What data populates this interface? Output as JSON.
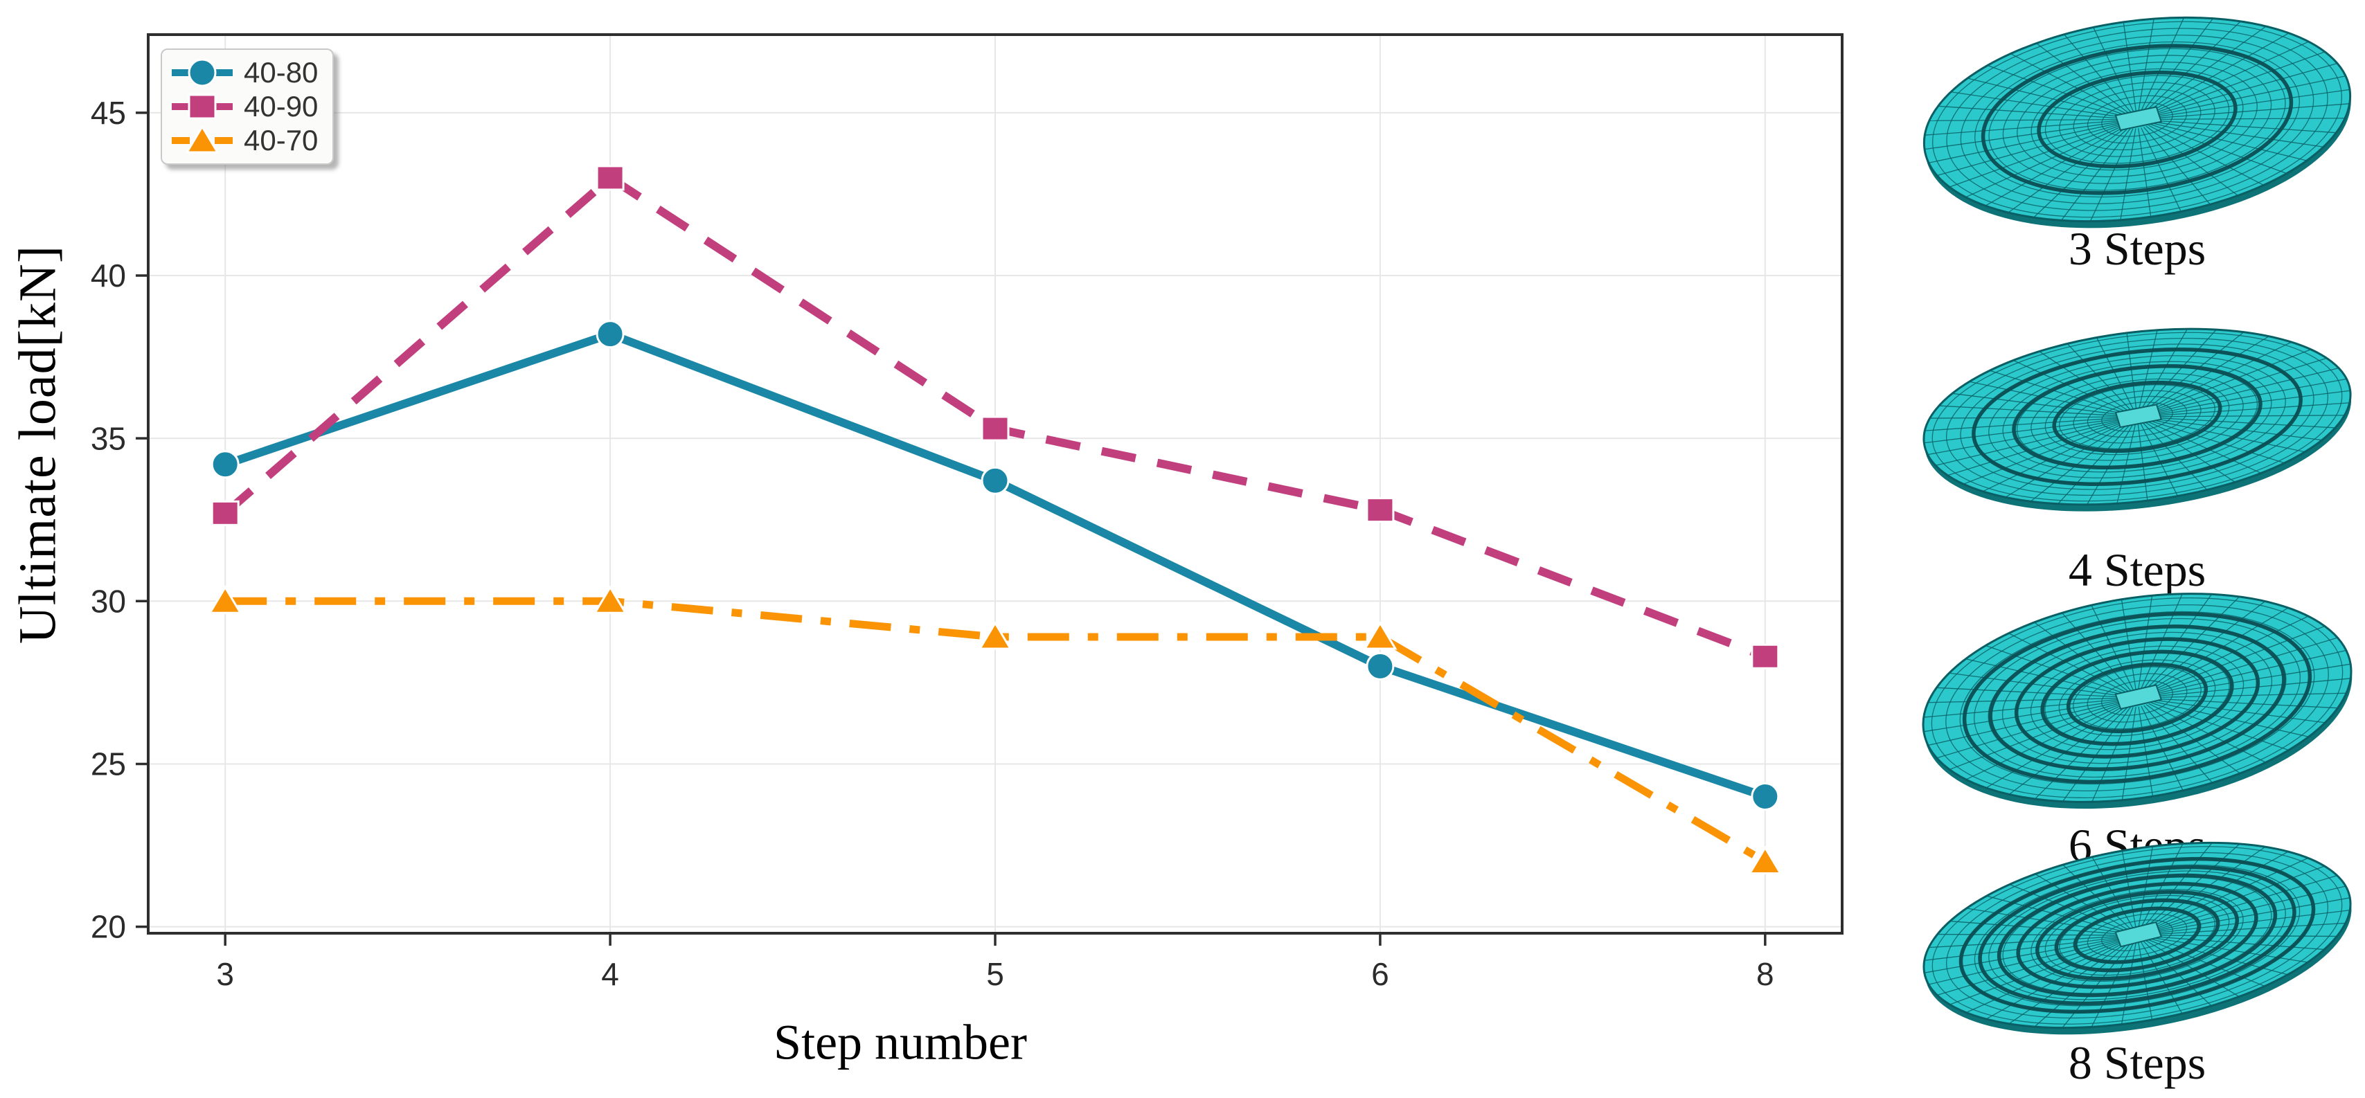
{
  "chart_data": {
    "type": "line",
    "title": "",
    "xlabel": "Step number",
    "ylabel": "Ultimate load[kN]",
    "categories": [
      "3",
      "4",
      "5",
      "6",
      "8"
    ],
    "y_ticks": [
      20,
      25,
      30,
      35,
      40,
      45
    ],
    "ylim": [
      19.8,
      47.4
    ],
    "grid": true,
    "legend_position": "upper-left",
    "series": [
      {
        "name": "40-80",
        "color": "#1b87a6",
        "marker": "circle",
        "linestyle": "solid",
        "values": [
          34.2,
          38.2,
          33.7,
          28.0,
          24.0
        ]
      },
      {
        "name": "40-90",
        "color": "#c23f7e",
        "marker": "square",
        "linestyle": "dashed",
        "values": [
          32.7,
          43.0,
          35.3,
          32.8,
          28.3
        ]
      },
      {
        "name": "40-70",
        "color": "#fb9405",
        "marker": "triangle",
        "linestyle": "dashdot",
        "values": [
          30.0,
          30.0,
          28.9,
          28.9,
          22.0
        ]
      }
    ]
  },
  "mesh_panels": [
    {
      "label": "3 Steps",
      "steps": 3,
      "boundary_rings": 2
    },
    {
      "label": "4 Steps",
      "steps": 4,
      "boundary_rings": 3
    },
    {
      "label": "6 Steps",
      "steps": 6,
      "boundary_rings": 5
    },
    {
      "label": "8 Steps",
      "steps": 8,
      "boundary_rings": 7
    }
  ],
  "colors": {
    "mesh_fill": "#2bc9cc",
    "mesh_fill_center": "#55d8d8",
    "mesh_line": "#0a5f64",
    "mesh_ring": "#0b4e52",
    "mesh_rim": "#0d7377",
    "axis": "#2e2e2e",
    "grid": "#e7e7e7",
    "tick_text": "#2b2b2b",
    "legend_text": "#333333",
    "marker_edge": "#ffffff"
  }
}
